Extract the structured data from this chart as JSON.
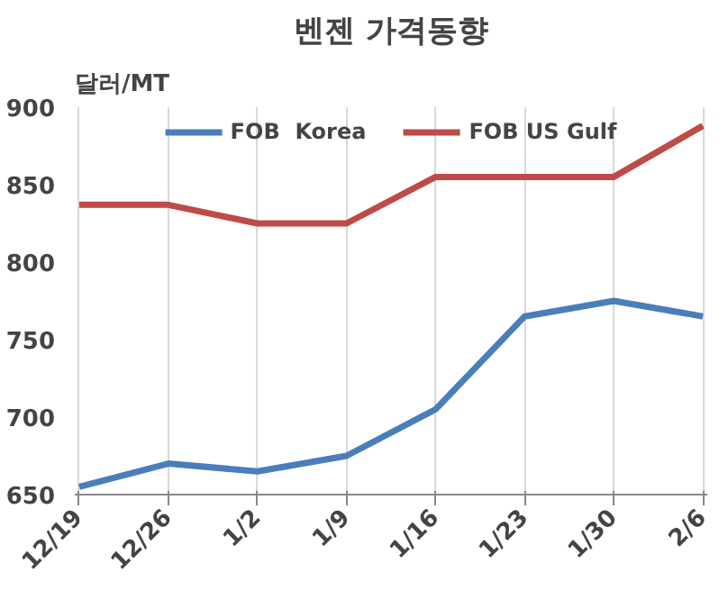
{
  "chart_data": {
    "type": "line",
    "title": "벤젠 가격동향",
    "ylabel": "달러/MT",
    "categories": [
      "12/19",
      "12/26",
      "1/2",
      "1/9",
      "1/16",
      "1/23",
      "1/30",
      "2/6"
    ],
    "series": [
      {
        "name": "FOB  Korea",
        "color": "#4a7ebb",
        "values": [
          655,
          670,
          665,
          675,
          705,
          765,
          775,
          765
        ]
      },
      {
        "name": "FOB US Gulf",
        "color": "#be4b48",
        "values": [
          837,
          837,
          825,
          825,
          855,
          855,
          855,
          888
        ]
      }
    ],
    "ylim": [
      650,
      900
    ],
    "yticks": [
      650,
      700,
      750,
      800,
      850,
      900
    ],
    "grid": "x",
    "legend": "top",
    "marker": "none",
    "line_style": "solid"
  }
}
